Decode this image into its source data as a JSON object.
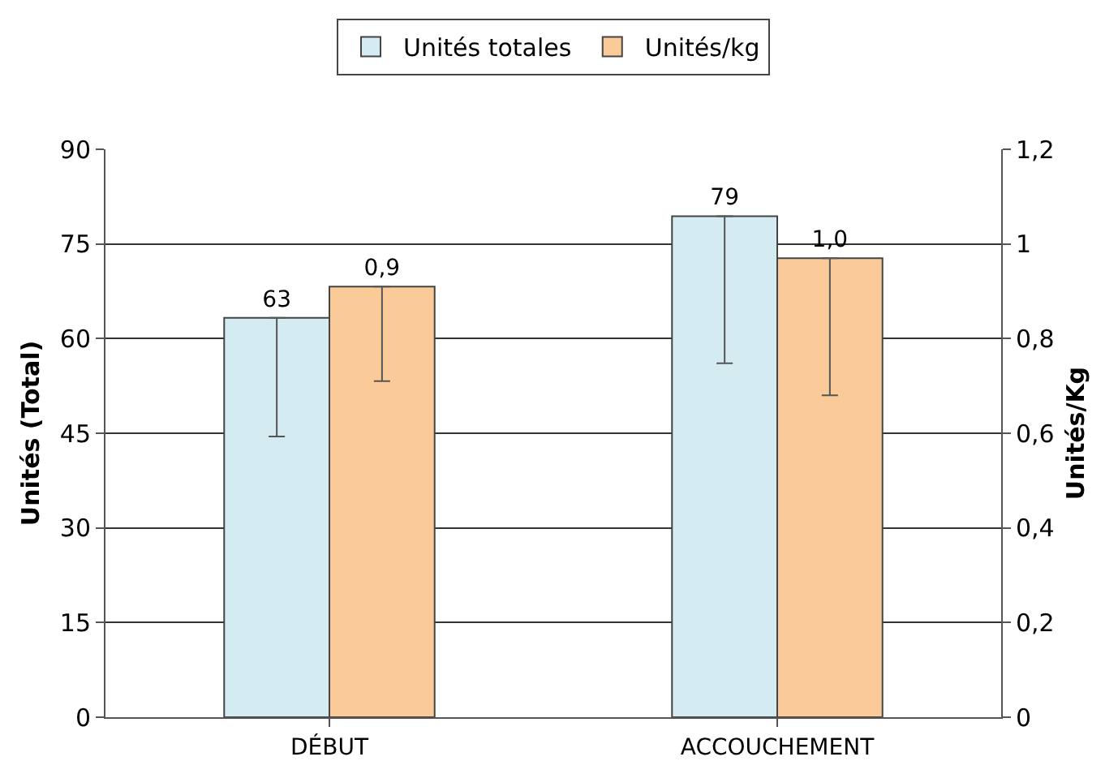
{
  "chart_data": {
    "type": "bar",
    "categories": [
      "DÉBUT",
      "ACCOUCHEMENT"
    ],
    "ylabel": "Unités (Total)",
    "y2label": "Unités/Kg",
    "series": [
      {
        "name": "Unités totales",
        "color": "#d3ebf1",
        "values": [
          63.3,
          79.4
        ],
        "value_labels": [
          "63",
          "79"
        ],
        "errors": [
          [
            44.5,
            63.3
          ],
          [
            56.1,
            79.4
          ]
        ]
      },
      {
        "name": "Unités/kg",
        "color": "#facb99",
        "axis": "y2",
        "values": [
          0.91,
          0.97
        ],
        "value_labels": [
          "0,9",
          "1,0"
        ],
        "errors": [
          [
            0.71,
            0.91
          ],
          [
            0.68,
            0.97
          ]
        ]
      }
    ],
    "ylim": [
      0,
      90
    ],
    "yticks": [
      0,
      15,
      30,
      45,
      60,
      75,
      90
    ],
    "y2lim": [
      0,
      1.2
    ],
    "y2ticks": [
      0,
      {
        "value": 0.2,
        "label": "0,2"
      },
      {
        "value": 0.4,
        "label": "0,4"
      },
      {
        "value": 0.6,
        "label": "0,6"
      },
      {
        "value": 0.8,
        "label": "0,8"
      },
      1,
      {
        "value": 1.2,
        "label": "1,2"
      }
    ],
    "grid": "y",
    "legend": "top"
  }
}
